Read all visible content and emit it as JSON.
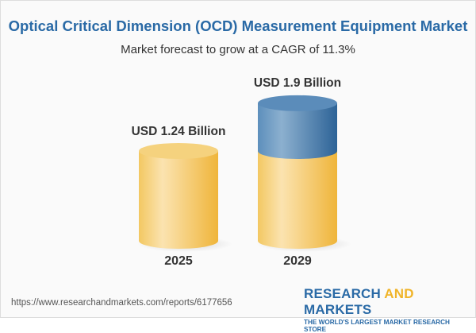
{
  "title": "Optical Critical Dimension (OCD) Measurement Equipment Market",
  "subtitle": "Market forecast to grow at a CAGR of 11.3%",
  "chart_data": {
    "type": "bar",
    "categories": [
      "2025",
      "2029"
    ],
    "values": [
      1.24,
      1.9
    ],
    "data_labels": [
      "USD 1.24 Billion",
      "USD 1.9 Billion"
    ],
    "unit": "USD Billion",
    "colors": {
      "base": "#f2c75c",
      "growth": "#3f7bb0"
    }
  },
  "footer": {
    "url": "https://www.researchandmarkets.com/reports/6177656",
    "logo_part1": "RESEARCH ",
    "logo_part2": "AND",
    "logo_part3": " MARKETS",
    "tagline": "THE WORLD'S LARGEST MARKET RESEARCH STORE"
  }
}
